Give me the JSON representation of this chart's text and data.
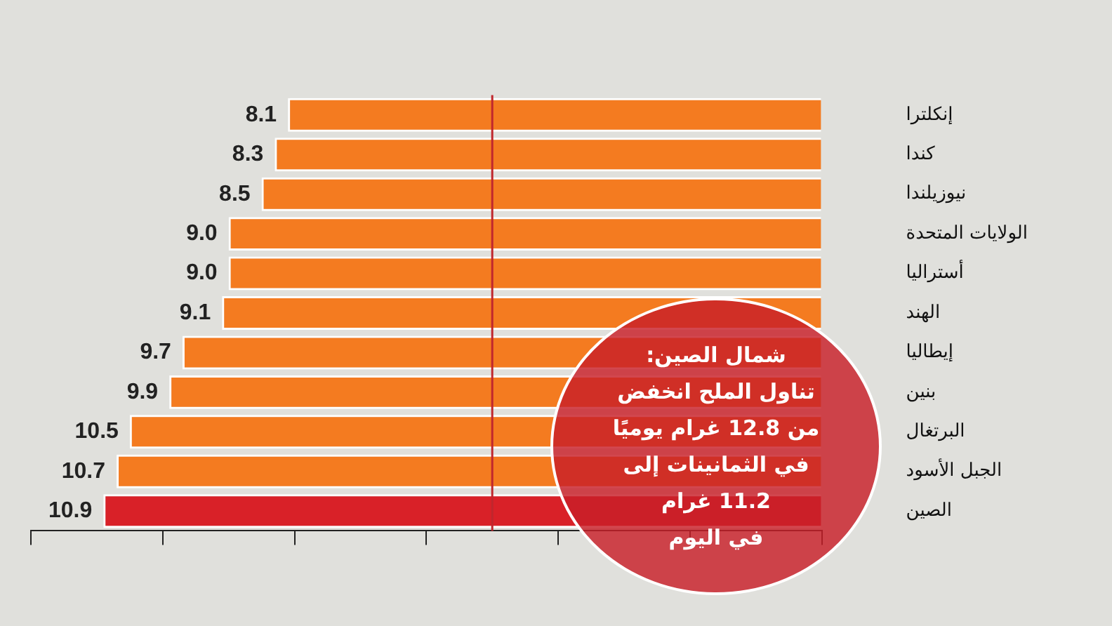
{
  "chart_data": {
    "type": "bar",
    "orientation": "horizontal",
    "categories": [
      "إنكلترا",
      "كندا",
      "نيوزيلندا",
      "الولايات المتحدة",
      "أستراليا",
      "الهند",
      "إيطاليا",
      "بنين",
      "البرتغال",
      "الجبل الأسود",
      "الصين"
    ],
    "values": [
      8.1,
      8.3,
      8.5,
      9.0,
      9.0,
      9.1,
      9.7,
      9.9,
      10.5,
      10.7,
      10.9
    ],
    "colors": [
      "#f47b20",
      "#f47b20",
      "#f47b20",
      "#f47b20",
      "#f47b20",
      "#f47b20",
      "#f47b20",
      "#f47b20",
      "#f47b20",
      "#f47b20",
      "#d92128"
    ],
    "xlim": [
      12,
      0
    ],
    "xticks": [
      {
        "value": 12,
        "label": null
      },
      {
        "value": 10,
        "label": null
      },
      {
        "value": 8,
        "label": null
      },
      {
        "value": 6,
        "label": null
      },
      {
        "value": 4,
        "label": null
      },
      {
        "value": 2,
        "label": null
      },
      {
        "value": 0,
        "label": null
      }
    ],
    "value_labels": [
      "8.1",
      "8.3",
      "8.5",
      "9.0",
      "9.0",
      "9.1",
      "9.7",
      "9.9",
      "10.5",
      "10.7",
      "10.9"
    ],
    "tick_labels": "y",
    "grid": false,
    "legend": false,
    "ref_lines": [
      {
        "axis": "x",
        "value": 5,
        "color": "#c0272d"
      }
    ],
    "annotations": [
      "شمال الصين:\nتناول الملح انخفض\nمن 12.8 غرام يوميًا\nفي الثمانينات إلى\n11.2 غرام\nفي اليوم"
    ]
  }
}
